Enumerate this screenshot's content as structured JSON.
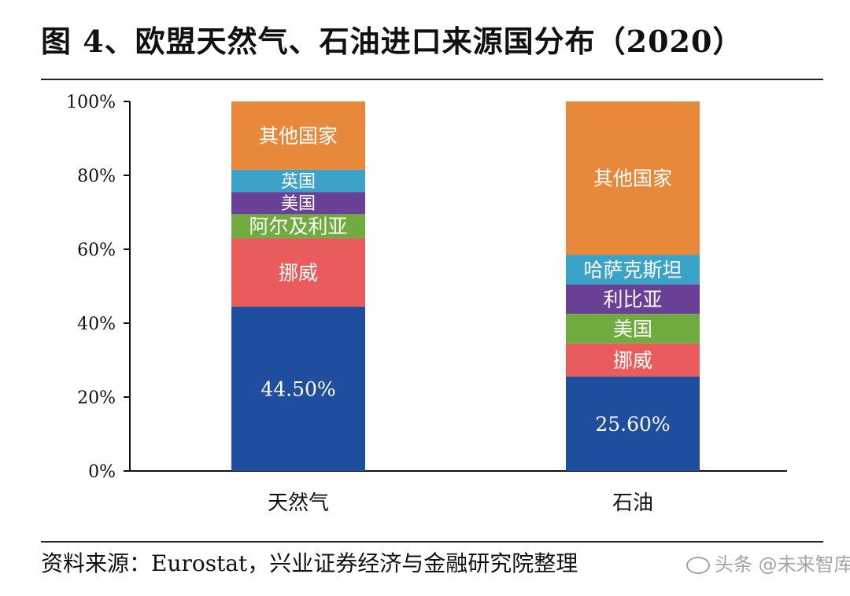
{
  "title": "图 4、欧盟天然气、石油进口来源国分布（2020）",
  "source": "资料来源：Eurostat，兴业证券经济与金融研究院整理",
  "watermark": "头条 @未来智库",
  "chart_data": {
    "type": "bar",
    "stacked": true,
    "categories": [
      "天然气",
      "石油"
    ],
    "ylim": [
      0,
      100
    ],
    "yticks": [
      "0%",
      "20%",
      "40%",
      "60%",
      "80%",
      "100%"
    ],
    "stacks": [
      {
        "category": "天然气",
        "segments": [
          {
            "label": "44.50%",
            "value": 44.5,
            "color": "#1f4e9e"
          },
          {
            "label": "挪威",
            "value": 18.5,
            "color": "#ea5b5b"
          },
          {
            "label": "阿尔及利亚",
            "value": 6.5,
            "color": "#70ab3f"
          },
          {
            "label": "美国",
            "value": 6.0,
            "color": "#6a3f96"
          },
          {
            "label": "英国",
            "value": 6.0,
            "color": "#3ba3c7"
          },
          {
            "label": "其他国家",
            "value": 18.5,
            "color": "#e8883a"
          }
        ]
      },
      {
        "category": "石油",
        "segments": [
          {
            "label": "25.60%",
            "value": 25.6,
            "color": "#1f4e9e"
          },
          {
            "label": "挪威",
            "value": 8.9,
            "color": "#ea5b5b"
          },
          {
            "label": "美国",
            "value": 8.0,
            "color": "#70ab3f"
          },
          {
            "label": "利比亚",
            "value": 8.0,
            "color": "#6a3f96"
          },
          {
            "label": "哈萨克斯坦",
            "value": 8.0,
            "color": "#3ba3c7"
          },
          {
            "label": "其他国家",
            "value": 41.5,
            "color": "#e8883a"
          }
        ]
      }
    ]
  }
}
